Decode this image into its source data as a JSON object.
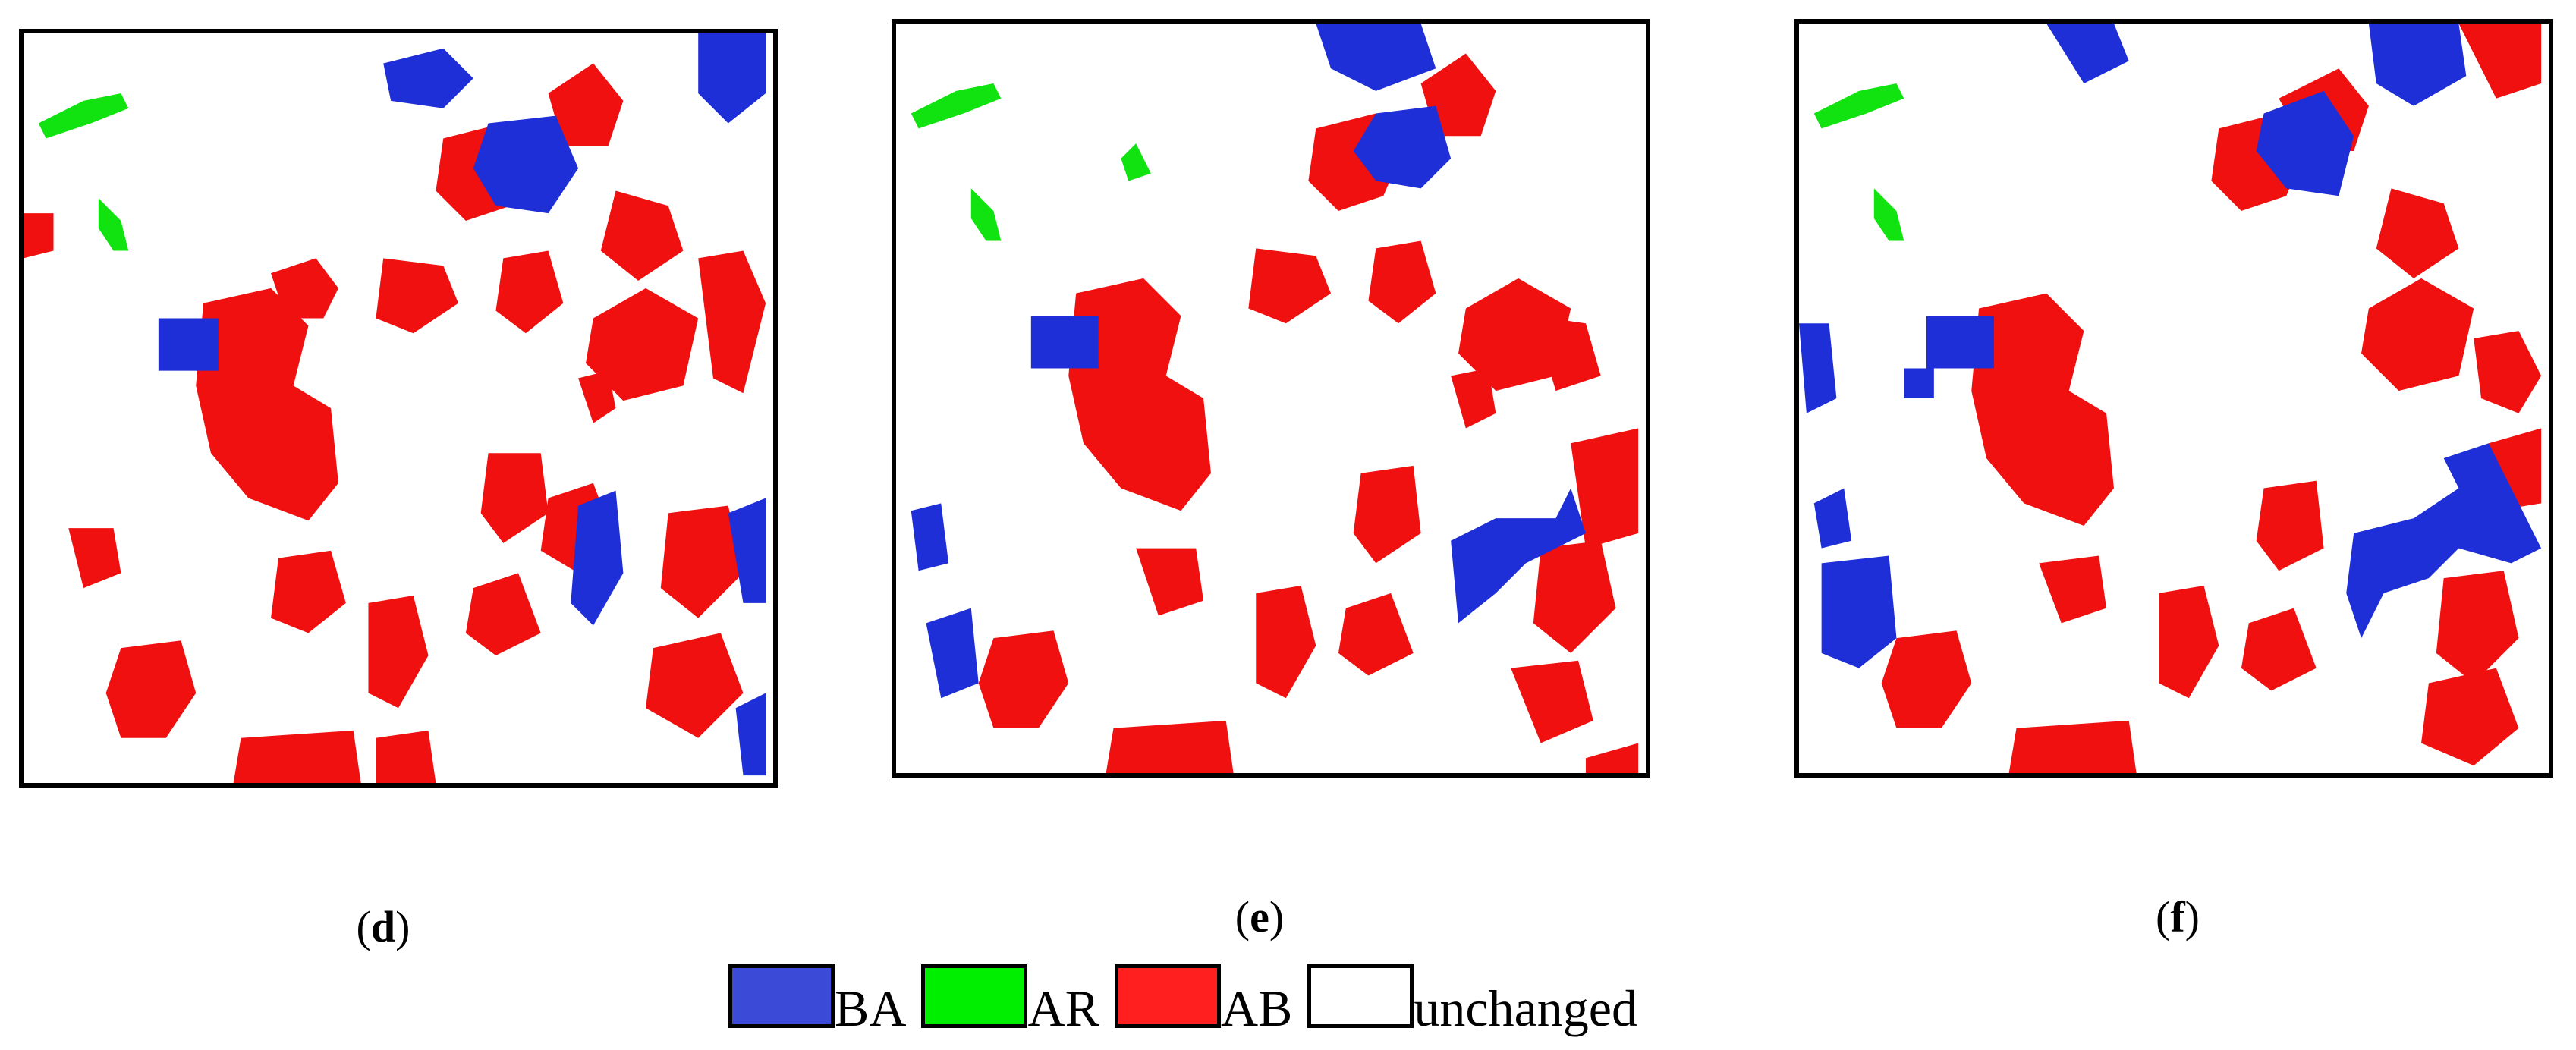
{
  "panels": [
    {
      "id": "d",
      "label_open": "(",
      "label_letter": "d",
      "label_close": ")"
    },
    {
      "id": "e",
      "label_open": "(",
      "label_letter": "e",
      "label_close": ")"
    },
    {
      "id": "f",
      "label_open": "(",
      "label_letter": "f",
      "label_close": ")"
    }
  ],
  "legend": {
    "items": [
      {
        "label": "BA",
        "color": "#3b4bd8"
      },
      {
        "label": "AR",
        "color": "#00ee00"
      },
      {
        "label": "AB",
        "color": "#ff1f1f"
      },
      {
        "label": "unchanged",
        "color": "#ffffff"
      }
    ]
  },
  "colors": {
    "blue": "#1f2fd8",
    "green": "#11e311",
    "red": "#f01010",
    "background": "#ffffff"
  }
}
